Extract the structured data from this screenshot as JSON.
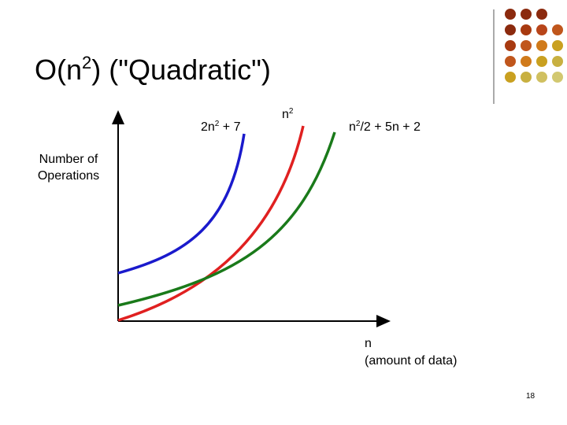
{
  "title": {
    "before": "O(n",
    "sup": "2",
    "after": ") (\"Quadratic\")"
  },
  "curves": [
    {
      "before": "2n",
      "sup": "2",
      "after": " + 7"
    },
    {
      "before": "n",
      "sup": "2",
      "after": ""
    },
    {
      "before": "n",
      "sup": "2",
      "after": "/2 + 5n + 2"
    }
  ],
  "y_axis_label": [
    "Number of",
    "Operations"
  ],
  "x_axis_label": [
    "n",
    "(amount of data)"
  ],
  "page_number": "18"
}
